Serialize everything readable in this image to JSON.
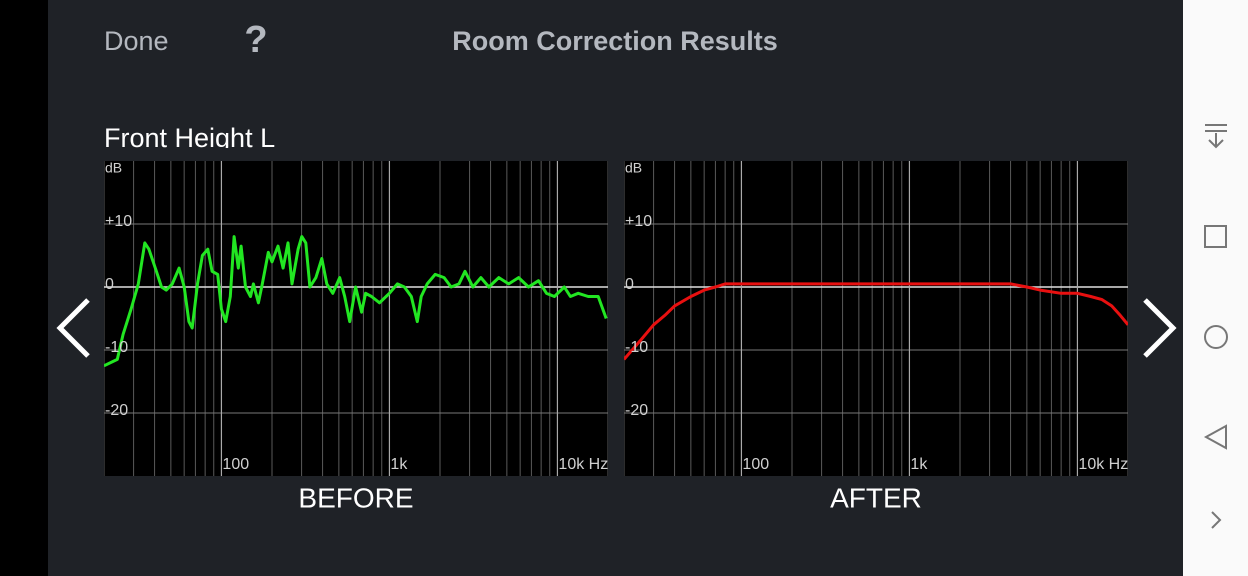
{
  "header": {
    "done": "Done",
    "help": "?",
    "title": "Room Correction Results"
  },
  "section": "Front Height L",
  "chart_data": [
    {
      "type": "line",
      "title": "BEFORE",
      "y_label": "dB",
      "xscale": "log",
      "grid": true,
      "color": "#22e622",
      "xlim": [
        20,
        20000
      ],
      "ylim": [
        -30,
        20
      ],
      "xticks": [
        100,
        {
          "value": 1000,
          "label": "1k"
        },
        {
          "value": 10000,
          "label": "10k Hz"
        }
      ],
      "xticks_minor": [
        20,
        30,
        40,
        50,
        60,
        70,
        80,
        90,
        200,
        300,
        400,
        500,
        600,
        700,
        800,
        900,
        2000,
        3000,
        4000,
        5000,
        6000,
        7000,
        8000,
        9000,
        20000
      ],
      "yticks": [
        {
          "value": 10,
          "label": "+10"
        },
        0,
        -10,
        -20
      ],
      "x": [
        20,
        24,
        26,
        29,
        32,
        35,
        37,
        41,
        44,
        47,
        51,
        56,
        60,
        64,
        67,
        72,
        77,
        83,
        88,
        95,
        100,
        106,
        113,
        119,
        126,
        131,
        139,
        149,
        155,
        166,
        175,
        190,
        200,
        217,
        233,
        249,
        263,
        286,
        301,
        318,
        336,
        365,
        396,
        424,
        460,
        506,
        542,
        580,
        629,
        683,
        721,
        782,
        873,
        1000,
        1115,
        1227,
        1349,
        1466,
        1546,
        1679,
        1872,
        2115,
        2328,
        2595,
        2818,
        3141,
        3501,
        3908,
        4477,
        5129,
        5875,
        6730,
        7720,
        8610,
        9590,
        10990,
        11940,
        13300,
        15240,
        17490,
        19500
      ],
      "values": [
        -12.5,
        -11.5,
        -7.5,
        -3.5,
        0.5,
        7,
        6,
        2.5,
        0,
        -0.5,
        0.5,
        3,
        0,
        -5.5,
        -6.5,
        0.5,
        5,
        6,
        2.5,
        2,
        -3.5,
        -5.5,
        -1.5,
        8,
        3,
        6.5,
        0,
        -1.5,
        0.5,
        -2.5,
        0.5,
        5.5,
        4,
        6.5,
        3,
        7,
        0.5,
        6,
        8,
        7,
        0,
        1.5,
        4.5,
        0.5,
        -1,
        1.5,
        -1.5,
        -5.5,
        0,
        -4,
        -1,
        -1.5,
        -2.5,
        -1,
        0.5,
        0,
        -1.5,
        -5.5,
        -1.5,
        0.5,
        2,
        1.5,
        0,
        0.5,
        2.5,
        0,
        1.5,
        0,
        1.5,
        0.5,
        1.5,
        0,
        1,
        -1,
        -1.5,
        0,
        -1.5,
        -1,
        -1.5,
        -1.5,
        -5
      ]
    },
    {
      "type": "line",
      "title": "AFTER",
      "y_label": "dB",
      "xscale": "log",
      "grid": true,
      "color": "#e81010",
      "xlim": [
        20,
        20000
      ],
      "ylim": [
        -30,
        20
      ],
      "xticks": [
        100,
        {
          "value": 1000,
          "label": "1k"
        },
        {
          "value": 10000,
          "label": "10k Hz"
        }
      ],
      "xticks_minor": [
        20,
        30,
        40,
        50,
        60,
        70,
        80,
        90,
        200,
        300,
        400,
        500,
        600,
        700,
        800,
        900,
        2000,
        3000,
        4000,
        5000,
        6000,
        7000,
        8000,
        9000,
        20000
      ],
      "yticks": [
        {
          "value": 10,
          "label": "+10"
        },
        0,
        -10,
        -20
      ],
      "x": [
        20,
        25,
        30,
        35,
        40,
        50,
        60,
        70,
        80,
        100,
        150,
        200,
        300,
        500,
        1000,
        2000,
        3000,
        4000,
        5000,
        6000,
        8000,
        10000,
        12000,
        14000,
        16000,
        18000,
        20000
      ],
      "values": [
        -11.5,
        -8.5,
        -6,
        -4.5,
        -3,
        -1.5,
        -0.5,
        0,
        0.5,
        0.5,
        0.5,
        0.5,
        0.5,
        0.5,
        0.5,
        0.5,
        0.5,
        0.5,
        0,
        -0.5,
        -1,
        -1,
        -1.5,
        -2,
        -3,
        -4.5,
        -6
      ]
    }
  ]
}
